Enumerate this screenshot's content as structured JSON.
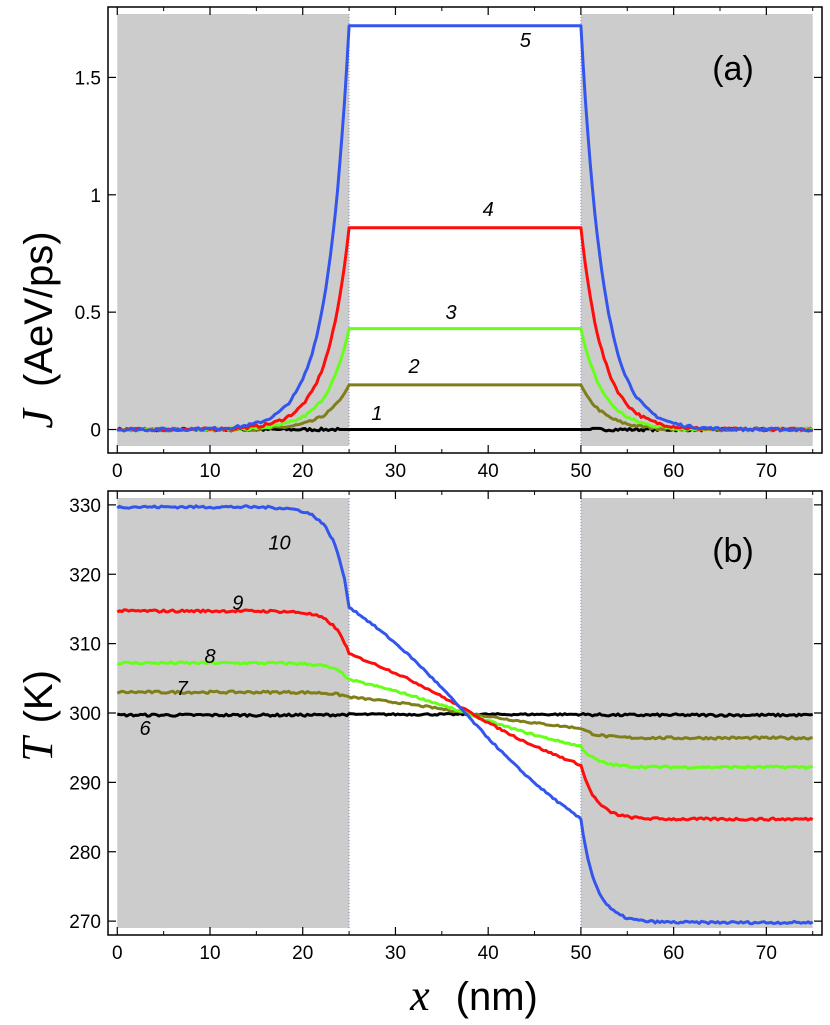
{
  "chart_data": [
    {
      "panel": "(a)",
      "type": "line",
      "ylabel_symbol": "J",
      "ylabel_unit": "(AeV/ps)",
      "xlim": [
        -1,
        76
      ],
      "ylim": [
        -0.1,
        1.8
      ],
      "xticks": [
        0,
        10,
        20,
        30,
        40,
        50,
        60,
        70
      ],
      "xtick_labels": [
        "0",
        "10",
        "20",
        "30",
        "40",
        "50",
        "60",
        "70"
      ],
      "yticks": [
        0,
        0.5,
        1,
        1.5
      ],
      "ytick_labels": [
        "0",
        "0.5",
        "1",
        "1.5"
      ],
      "shaded_regions": [
        [
          0,
          25
        ],
        [
          50,
          75
        ]
      ],
      "series": [
        {
          "name": "1",
          "color": "#000000",
          "plateau": 0.0,
          "label_x": 28,
          "label_y": 0.04
        },
        {
          "name": "2",
          "color": "#7f7f1a",
          "plateau": 0.19,
          "label_x": 32,
          "label_y": 0.24
        },
        {
          "name": "3",
          "color": "#66ff1a",
          "plateau": 0.43,
          "label_x": 36,
          "label_y": 0.47
        },
        {
          "name": "4",
          "color": "#ff0d0d",
          "plateau": 0.86,
          "label_x": 40,
          "label_y": 0.91
        },
        {
          "name": "5",
          "color": "#3355ee",
          "plateau": 1.72,
          "label_x": 44,
          "label_y": 1.63
        }
      ]
    },
    {
      "panel": "(b)",
      "type": "line",
      "ylabel_symbol": "T",
      "ylabel_unit": "(K)",
      "xlabel_symbol": "x",
      "xlabel_unit": "(nm)",
      "xlim": [
        -1,
        76
      ],
      "ylim": [
        268,
        332
      ],
      "xticks": [
        0,
        10,
        20,
        30,
        40,
        50,
        60,
        70
      ],
      "xtick_labels": [
        "0",
        "10",
        "20",
        "30",
        "40",
        "50",
        "60",
        "70"
      ],
      "yticks": [
        270,
        280,
        290,
        300,
        310,
        320,
        330
      ],
      "ytick_labels": [
        "270",
        "280",
        "290",
        "300",
        "310",
        "320",
        "330"
      ],
      "shaded_regions": [
        [
          0,
          25
        ],
        [
          50,
          75
        ]
      ],
      "series": [
        {
          "name": "6",
          "color": "#000000",
          "T_left": 299.7,
          "T_mid_left": 299.8,
          "T_mid_right": 299.8,
          "T_right": 299.7,
          "label_x": 3,
          "label_y": 296.8
        },
        {
          "name": "7",
          "color": "#7f7f1a",
          "T_left": 303.0,
          "T_mid_left": 302.3,
          "T_mid_right": 297.8,
          "T_right": 296.4,
          "label_x": 7,
          "label_y": 302.6
        },
        {
          "name": "8",
          "color": "#66ff1a",
          "T_left": 307.2,
          "T_mid_left": 304.8,
          "T_mid_right": 295.2,
          "T_right": 292.2,
          "label_x": 10,
          "label_y": 307.2
        },
        {
          "name": "9",
          "color": "#ff0d0d",
          "T_left": 314.7,
          "T_mid_left": 308.5,
          "T_mid_right": 292.5,
          "T_right": 284.7,
          "label_x": 13,
          "label_y": 314.9
        },
        {
          "name": "10",
          "color": "#3355ee",
          "T_left": 329.7,
          "T_mid_left": 315.3,
          "T_mid_right": 284.7,
          "T_right": 269.8,
          "label_x": 17.5,
          "label_y": 323.6
        }
      ]
    }
  ]
}
